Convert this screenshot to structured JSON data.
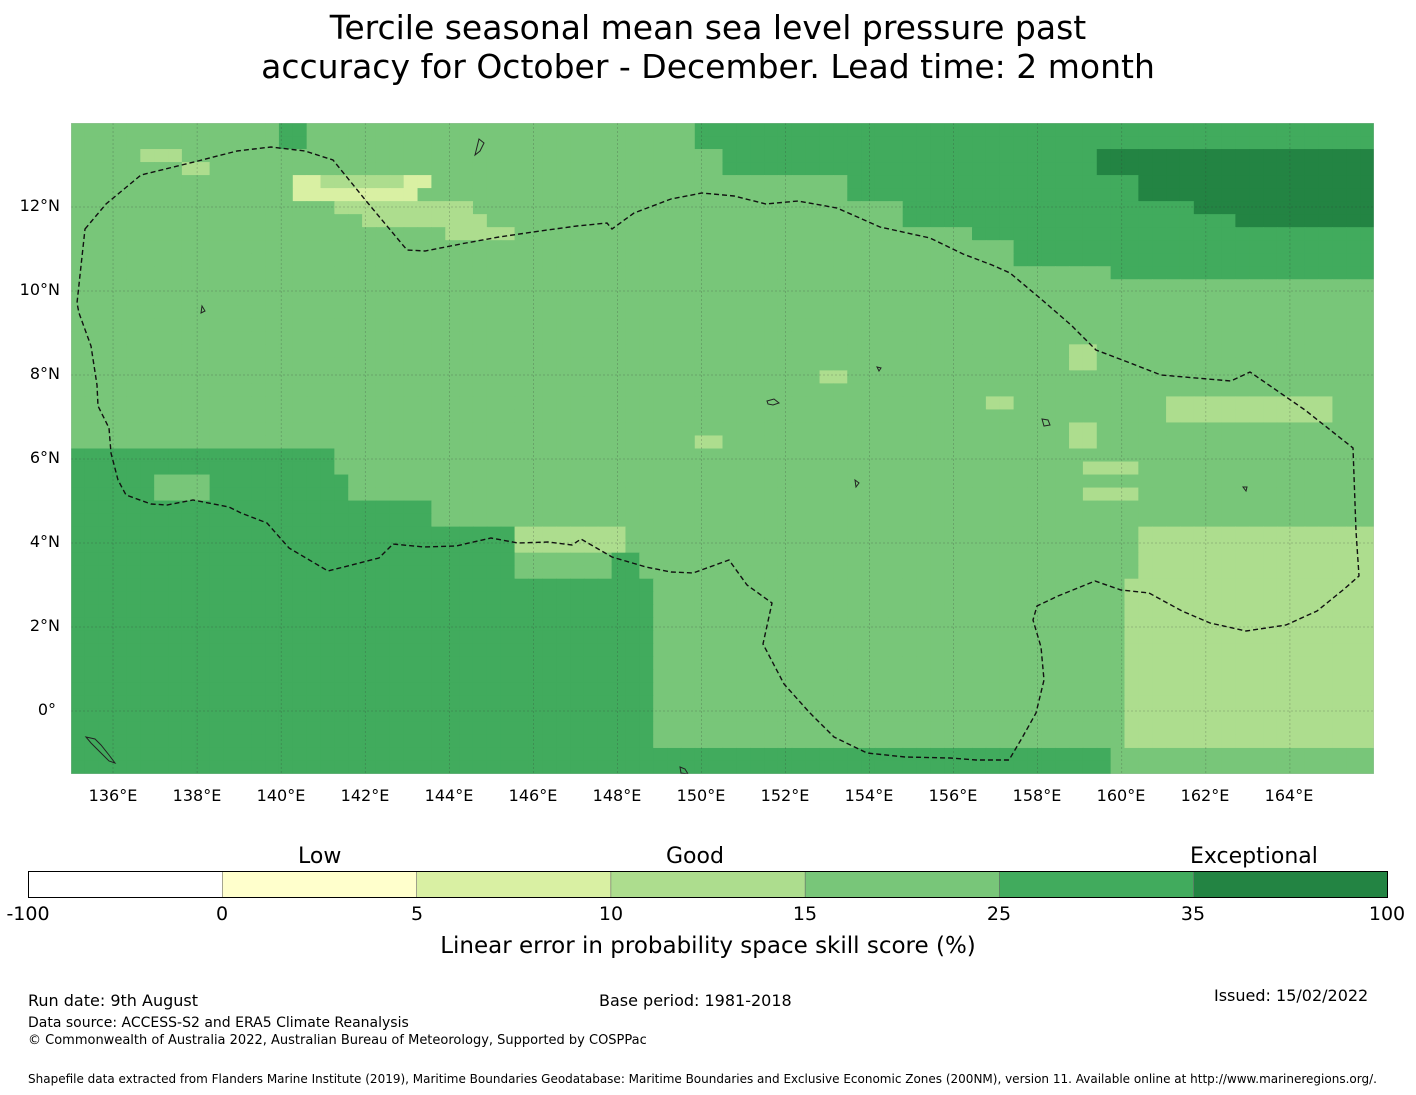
{
  "title": {
    "line1": "Tercile seasonal mean sea level pressure past",
    "line2": "accuracy for October - December. Lead time: 2 month"
  },
  "map": {
    "lon_labels": [
      "136°E",
      "138°E",
      "140°E",
      "142°E",
      "144°E",
      "146°E",
      "148°E",
      "150°E",
      "152°E",
      "154°E",
      "156°E",
      "158°E",
      "160°E",
      "162°E",
      "164°E"
    ],
    "lat_labels": [
      "12°N",
      "10°N",
      "8°N",
      "6°N",
      "4°N",
      "2°N",
      "0°"
    ],
    "extent": {
      "lon": [
        135,
        166
      ],
      "lat": [
        -1.5,
        14
      ]
    },
    "colors": {
      "c0": "#ffffff",
      "c1": "#ffffcc",
      "c2": "#d9f0a3",
      "c3": "#addd8e",
      "c4": "#78c679",
      "c5": "#41ab5d",
      "c6": "#238443"
    },
    "grid_rows": [
      "4444444444444445544444444444444444444444444445555555555555555555555555555555555555555555555555",
      "4444444444444445544444444444444444444444444445555555555555555555555555555555555555555555555555",
      "4444433344444444444444444444444444444444444444455555555555555555555555555566666666666666666666",
      "4444444433444444444444444444444444444444444444455555555555555555555555555566666666666666666666",
      "4444444444444444223333332244444444444444444444444444444455555555555555555555566666666666666666",
      "4444444444444444222222222444444444444444444444444444444455555555555555555555566666666666666666",
      "4444444444444444444333333333344444444444444444444444444444445555555555555555555556666666666666",
      "4444444444444444444443333333334444444444444444444444444444445555555555555555555555556666666666",
      "4444444444444444444444444443333344444444444444444444444444444444455555555555555555555555555555",
      "4444444444444444444444444444444444444444444444444444444444444444444455555555555555555555555555",
      "4444444444444444444444444444444444444444444444444444444444444444444455555555555555555555555555",
      "4444444444444444444444444444444444444444444444444444444444444444444444444445555555555555555555",
      "4444444444444444444444444444444444444444444444444444444444444444444444444444444444444444444444",
      "4444444444444444444444444444444444444444444444444444444444444444444444444444444444444444444444",
      "4444444444444444444444444444444444444444444444444444444444444444444444444444444444444444444444",
      "4444444444444444444444444444444444444444444444444444444444444444444444444444444444444444444444",
      "4444444444444444444444444444444444444444444444444444444444444444444444444444444444444444444444",
      "4444444444444444444444444444444444444444444444444444444444444444444444443344444444444444444444",
      "4444444444444444444444444444444444444444444444444444444444444444444444443344444444444444444444",
      "4444444444444444444444444444444444444444444444444444443344444444444444444444444444444444444444",
      "4444444444444444444444444444444444444444444444444444444444444444444444444444444444444444444444",
      "4444444444444444444444444444444444444444444444444444444444444444443344444444444333333333333444",
      "4444444444444444444444444444444444444444444444444444444444444444444444444444444333333333333444",
      "4444444444444444444444444444444444444444444444444444444444444444444444443344444444444444444444",
      "4444444444444444444444444444444444444444444443344444444444444444444444443344444444444444444444",
      "5555555555555555555444444444444444444444444444444444444444444444444444444444444444444444444444",
      "5555555555555555555444444444444444444444444444444444444444444444444444444333344444444444444444",
      "5555554444555555555544444444444444444444444444444444444444444444444444444444444444444444444444",
      "5555554444555555555544444444444444444444444444444444444444444444444444444333344444444444444444",
      "5555555555555555555555555544444444444444444444444444444444444444444444444444444444444444444444",
      "5555555555555555555555555544444444444444444444444444444444444444444444444444444444444444444444",
      "5555555555555555555555555555555533333333444444444444444444444444444444444444433333333333333333",
      "5555555555555555555555555555555533333333444444444444444444444444444444444444433333333333333333",
      "5555555555555555555555555555555544444445544444444444444444444444444444444444433333333333333333",
      "5555555555555555555555555555555544444445544444444444444444444444444444444444433333333333333333",
      "5555555555555555555555555555555555555555554444444444444444444444444444444444333333333333333333",
      "5555555555555555555555555555555555555555554444444444444444444444444444444444333333333333333333",
      "5555555555555555555555555555555555555555554444444444444444444444444444444444333333333333333333",
      "5555555555555555555555555555555555555555554444444444444444444444444444444444333333333333333333",
      "5555555555555555555555555555555555555555554444444444444444444444444444444444333333333333333333",
      "5555555555555555555555555555555555555555554444444444444444444444444444444444333333333333333333",
      "5555555555555555555555555555555555555555554444444444444444444444444444444444333333333333333333",
      "5555555555555555555555555555555555555555554444444444444444444444444444444444333333333333333333",
      "5555555555555555555555555555555555555555554444444444444444444444444444444444333333333333333333",
      "5555555555555555555555555555555555555555554444444444444444444444444444444444333333333333333333",
      "5555555555555555555555555555555555555555554444444444444444444444444444444444333333333333333333",
      "5555555555555555555555555555555555555555554444444444444444444444444444444444333333333333333333",
      "5555555555555555555555555555555555555555554444444444444444444444444444444444333333333333333333",
      "5555555555555555555555555555555555555555555555555555555555555555555555555554444444444444444444",
      "5555555555555555555555555555555555555555555555555555555555555555555555555554444444444444444444"
    ]
  },
  "colorbar": {
    "categories": [
      "Low",
      "Good",
      "Exceptional"
    ],
    "ticks": [
      "-100",
      "0",
      "5",
      "10",
      "15",
      "25",
      "35",
      "100"
    ],
    "label": "Linear error in probability space skill score (%)"
  },
  "footer": {
    "run_date": "Run date: 9th August",
    "base_period": "Base period: 1981-2018",
    "issued": "Issued: 15/02/2022",
    "data_source": "Data source: ACCESS-S2 and ERA5 Climate Reanalysis",
    "copyright": "© Commonwealth of Australia 2022, Australian Bureau of Meteorology, Supported by COSPPac",
    "shapefile": "Shapefile data extracted from Flanders Marine Institute (2019), Maritime Boundaries Geodatabase: Maritime Boundaries and Exclusive Economic Zones (200NM), version 11. Available online at http://www.marineregions.org/."
  }
}
